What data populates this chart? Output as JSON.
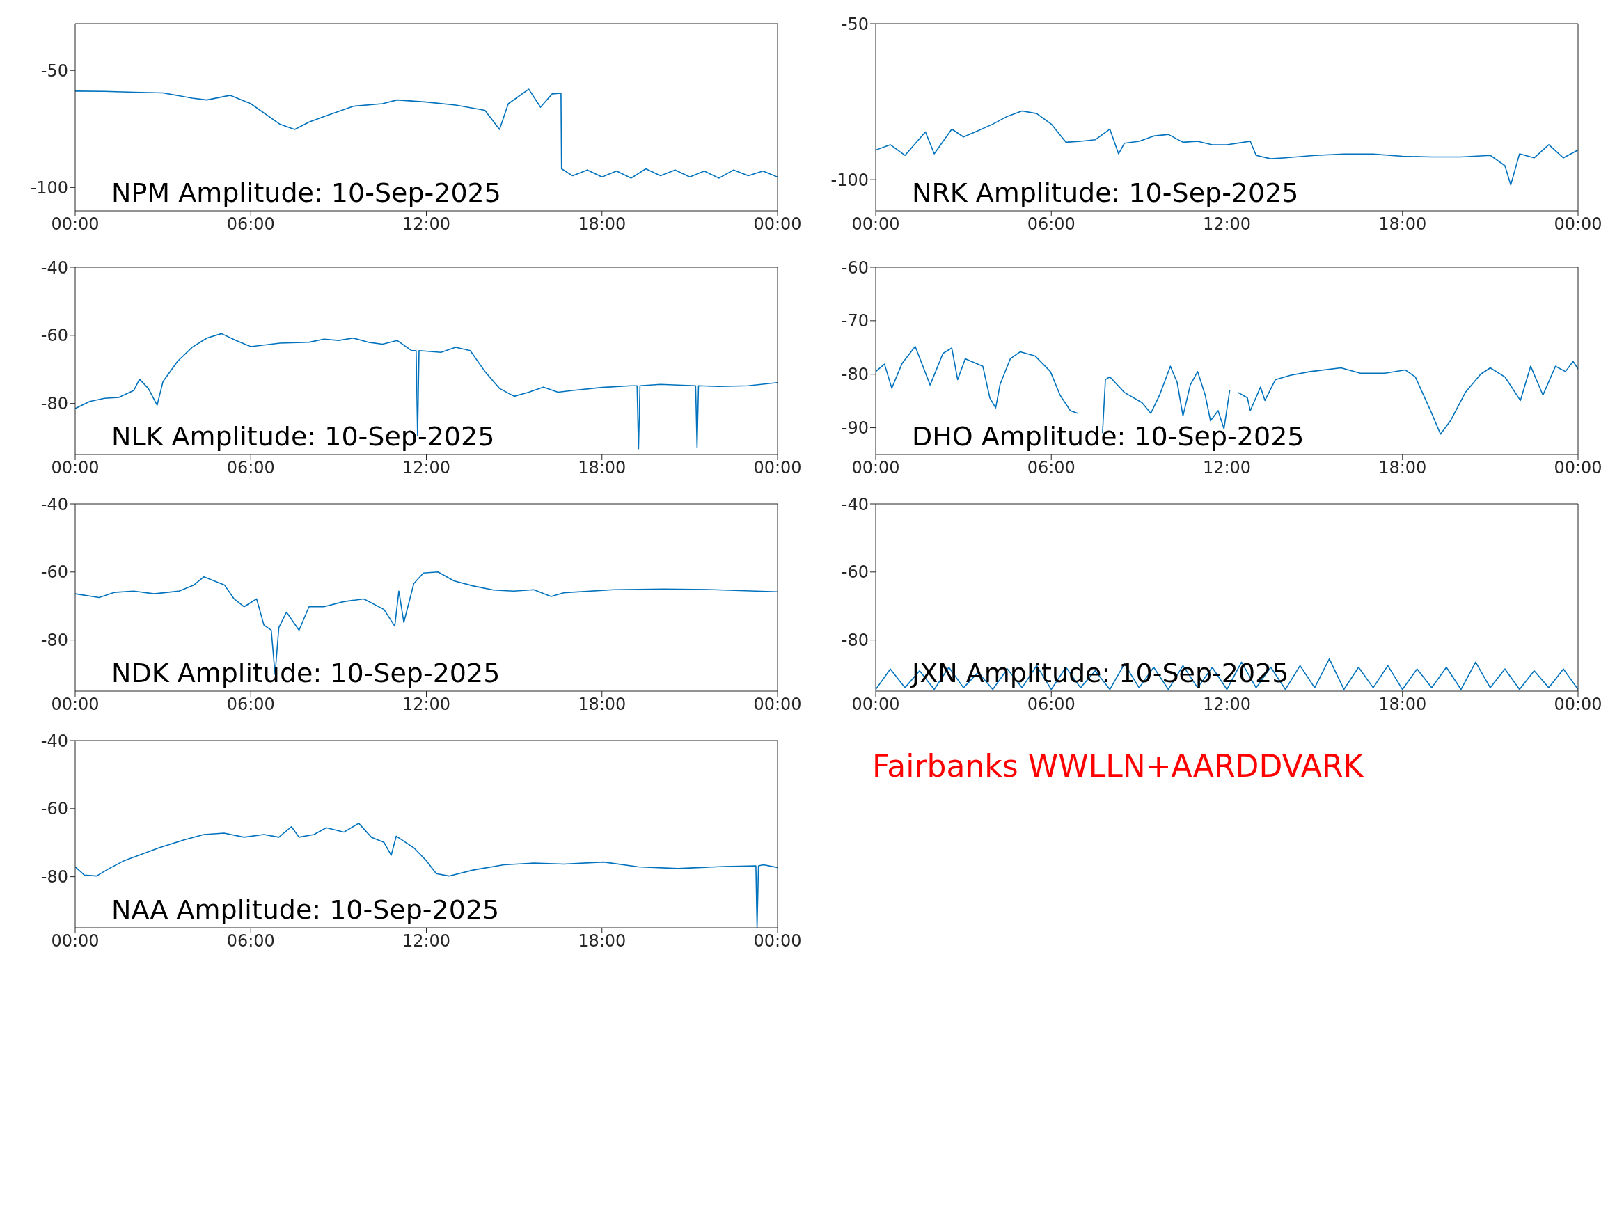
{
  "chart_data": [
    {
      "type": "line",
      "title": "NPM Amplitude: 10-Sep-2025",
      "xlim": [
        0,
        24
      ],
      "xticks": [
        {
          "value": 0,
          "label": "00:00"
        },
        {
          "value": 6,
          "label": "06:00"
        },
        {
          "value": 12,
          "label": "12:00"
        },
        {
          "value": 18,
          "label": "18:00"
        },
        {
          "value": 24,
          "label": "00:00"
        }
      ],
      "ylim": [
        -110,
        -30
      ],
      "yticks": [
        -100,
        -50
      ],
      "x": [
        0,
        1,
        2,
        3,
        4,
        4.5,
        5.3,
        6,
        7,
        7.5,
        8,
        8.5,
        9.5,
        10.5,
        11,
        12,
        13,
        14,
        14.5,
        14.8,
        15.5,
        15.9,
        16.3,
        16.6,
        16.62,
        17,
        17.5,
        18,
        18.5,
        19,
        19.5,
        20,
        20.5,
        21,
        21.5,
        22,
        22.5,
        23,
        23.5,
        24
      ],
      "series": [
        {
          "color": "#0072bd",
          "values": [
            -58.8,
            -58.9,
            -59.3,
            -59.6,
            -61.8,
            -62.6,
            -60.6,
            -64.2,
            -73,
            -75.2,
            -72,
            -69.7,
            -65.3,
            -64.2,
            -62.6,
            -63.5,
            -64.8,
            -67,
            -75.2,
            -64.2,
            -58,
            -65.7,
            -60,
            -59.7,
            -92,
            -95,
            -92.5,
            -95.5,
            -93,
            -96,
            -92,
            -95,
            -92.5,
            -95.5,
            -93,
            -96,
            -92.5,
            -95,
            -93,
            -95.5
          ]
        }
      ]
    },
    {
      "type": "line",
      "title": "NRK Amplitude: 10-Sep-2025",
      "xlim": [
        0,
        24
      ],
      "xticks": [
        {
          "value": 0,
          "label": "00:00"
        },
        {
          "value": 6,
          "label": "06:00"
        },
        {
          "value": 12,
          "label": "12:00"
        },
        {
          "value": 18,
          "label": "18:00"
        },
        {
          "value": 24,
          "label": "00:00"
        }
      ],
      "ylim": [
        -110,
        -50
      ],
      "yticks": [
        -100,
        -50
      ],
      "x": [
        0,
        0.5,
        1,
        1.7,
        2,
        2.6,
        3,
        3.5,
        4,
        4.5,
        5,
        5.5,
        6,
        6.5,
        7,
        7.5,
        8,
        8.3,
        8.5,
        9,
        9.5,
        10,
        10.5,
        11,
        11.5,
        12,
        12.8,
        13,
        13.5,
        14,
        15,
        16,
        17,
        18,
        19,
        20,
        21,
        21.5,
        21.7,
        22,
        22.5,
        23,
        23.5,
        24
      ],
      "series": [
        {
          "color": "#0072bd",
          "values": [
            -90.5,
            -88.8,
            -92.2,
            -84.7,
            -91.7,
            -83.8,
            -86.3,
            -84.3,
            -82.2,
            -79.7,
            -78,
            -78.8,
            -82.2,
            -88,
            -87.7,
            -87.2,
            -83.8,
            -91.7,
            -88.3,
            -87.7,
            -86,
            -85.5,
            -88,
            -87.7,
            -88.8,
            -88.8,
            -87.7,
            -92.2,
            -93.3,
            -93,
            -92.2,
            -91.8,
            -91.8,
            -92.5,
            -92.7,
            -92.7,
            -92.2,
            -95.5,
            -101.7,
            -91.7,
            -93,
            -88.8,
            -93,
            -90.5
          ]
        }
      ]
    },
    {
      "type": "line",
      "title": "NLK Amplitude: 10-Sep-2025",
      "xlim": [
        0,
        24
      ],
      "xticks": [
        {
          "value": 0,
          "label": "00:00"
        },
        {
          "value": 6,
          "label": "06:00"
        },
        {
          "value": 12,
          "label": "12:00"
        },
        {
          "value": 18,
          "label": "18:00"
        },
        {
          "value": 24,
          "label": "00:00"
        }
      ],
      "ylim": [
        -95,
        -40
      ],
      "yticks": [
        -80,
        -60,
        -40
      ],
      "x": [
        0,
        0.5,
        1,
        1.5,
        2,
        2.2,
        2.5,
        2.8,
        3,
        3.5,
        4,
        4.5,
        5,
        5.5,
        6,
        7,
        8,
        8.5,
        9,
        9.5,
        10,
        10.5,
        11,
        11.5,
        11.65,
        11.7,
        11.75,
        12.5,
        13,
        13.5,
        14,
        14.5,
        15,
        15.5,
        16,
        16.5,
        17,
        18,
        19,
        19.2,
        19.25,
        19.3,
        20,
        21.2,
        21.25,
        21.3,
        22,
        23,
        24
      ],
      "series": [
        {
          "color": "#0072bd",
          "values": [
            -81.5,
            -79.4,
            -78.5,
            -78.2,
            -76.2,
            -72.9,
            -75.6,
            -80.5,
            -73.6,
            -67.6,
            -63.5,
            -60.8,
            -59.5,
            -61.5,
            -63.3,
            -62.3,
            -62,
            -61.1,
            -61.5,
            -60.8,
            -62,
            -62.6,
            -61.5,
            -64.5,
            -64.5,
            -89.5,
            -64.5,
            -65,
            -63.5,
            -64.5,
            -70.6,
            -75.6,
            -77.9,
            -76.7,
            -75.2,
            -76.7,
            -76.2,
            -75.3,
            -74.8,
            -74.8,
            -93.3,
            -74.8,
            -74.4,
            -74.8,
            -93,
            -74.8,
            -75,
            -74.8,
            -73.9
          ]
        }
      ]
    },
    {
      "type": "line",
      "title": "DHO Amplitude: 10-Sep-2025",
      "xlim": [
        0,
        24
      ],
      "xticks": [
        {
          "value": 0,
          "label": "00:00"
        },
        {
          "value": 6,
          "label": "06:00"
        },
        {
          "value": 12,
          "label": "12:00"
        },
        {
          "value": 18,
          "label": "18:00"
        },
        {
          "value": 24,
          "label": "00:00"
        }
      ],
      "ylim": [
        -95,
        -60
      ],
      "yticks": [
        -90,
        -80,
        -70,
        -60
      ],
      "x": [
        0,
        0.3,
        0.55,
        0.9,
        1.35,
        1.86,
        2.3,
        2.6,
        2.8,
        3.06,
        3.66,
        3.9,
        4.1,
        4.25,
        4.6,
        4.94,
        5.45,
        5.97,
        6.3,
        6.65,
        6.9,
        7.0,
        7.3,
        7.6,
        7.75,
        7.85,
        8.0,
        8.5,
        9.1,
        9.4,
        9.7,
        10.07,
        10.3,
        10.5,
        10.75,
        11.0,
        11.26,
        11.44,
        11.7,
        11.9,
        12.1,
        12.2,
        12.38,
        12.7,
        12.8,
        13.15,
        13.3,
        13.66,
        14.17,
        14.85,
        15.9,
        16.56,
        17.4,
        18.1,
        18.44,
        18.96,
        19.3,
        19.64,
        20.15,
        20.67,
        21.0,
        21.5,
        22.03,
        22.38,
        22.8,
        23.23,
        23.57,
        23.83,
        24
      ],
      "series": [
        {
          "color": "#0072bd",
          "values": [
            -79.5,
            -78.1,
            -82.6,
            -78,
            -74.8,
            -82,
            -76.1,
            -75.1,
            -81,
            -77.1,
            -78.5,
            -84.4,
            -86.3,
            -81.9,
            -77.1,
            -75.8,
            -76.6,
            -79.5,
            -83.9,
            -86.8,
            -87.3,
            null,
            null,
            null,
            -91,
            -81,
            -80.5,
            -83.4,
            -85.3,
            -87.3,
            -83.9,
            -78.5,
            -81.5,
            -87.8,
            -82,
            -79.5,
            -83.9,
            -88.7,
            -86.8,
            -90.2,
            -82.9,
            null,
            -83.4,
            -84.4,
            -86.8,
            -82.4,
            -84.9,
            -81,
            -80.2,
            -79.5,
            -78.8,
            -79.8,
            -79.8,
            -79.2,
            -80.5,
            -86.8,
            -91.2,
            -88.7,
            -83.4,
            -80,
            -78.8,
            -80.5,
            -84.9,
            -78.5,
            -83.9,
            -78.5,
            -79.5,
            -77.6,
            -79
          ]
        }
      ]
    },
    {
      "type": "line",
      "title": "NDK Amplitude: 10-Sep-2025",
      "xlim": [
        0,
        24
      ],
      "xticks": [
        {
          "value": 0,
          "label": "00:00"
        },
        {
          "value": 6,
          "label": "06:00"
        },
        {
          "value": 12,
          "label": "12:00"
        },
        {
          "value": 18,
          "label": "18:00"
        },
        {
          "value": 24,
          "label": "00:00"
        }
      ],
      "ylim": [
        -95,
        -40
      ],
      "yticks": [
        -80,
        -60,
        -40
      ],
      "x": [
        0,
        0.82,
        1.33,
        2.0,
        2.7,
        3.55,
        4.06,
        4.4,
        5.1,
        5.43,
        5.77,
        6.2,
        6.45,
        6.7,
        6.83,
        6.96,
        7.22,
        7.65,
        7.99,
        8.5,
        9.18,
        9.86,
        10.55,
        10.92,
        11.06,
        11.23,
        11.57,
        11.9,
        12.4,
        12.94,
        13.6,
        14.3,
        14.98,
        15.67,
        16.26,
        16.69,
        18.4,
        20.1,
        21.8,
        24
      ],
      "series": [
        {
          "color": "#0072bd",
          "values": [
            -66.4,
            -67.5,
            -66,
            -65.6,
            -66.4,
            -65.6,
            -63.8,
            -61.4,
            -63.8,
            -67.9,
            -70.2,
            -67.9,
            -75.6,
            -77.1,
            -90.1,
            -76.3,
            -71.8,
            -77.1,
            -70.2,
            -70.2,
            -68.7,
            -67.9,
            -71,
            -75.9,
            -65.6,
            -74.8,
            -63.4,
            -60.3,
            -60,
            -62.6,
            -64.1,
            -65.3,
            -65.6,
            -65.2,
            -67.2,
            -66.1,
            -65.2,
            -65,
            -65.2,
            -65.8
          ]
        }
      ]
    },
    {
      "type": "line",
      "title": "JXN Amplitude: 10-Sep-2025",
      "xlim": [
        0,
        24
      ],
      "xticks": [
        {
          "value": 0,
          "label": "00:00"
        },
        {
          "value": 6,
          "label": "06:00"
        },
        {
          "value": 12,
          "label": "12:00"
        },
        {
          "value": 18,
          "label": "18:00"
        },
        {
          "value": 24,
          "label": "00:00"
        }
      ],
      "ylim": [
        -95,
        -40
      ],
      "yticks": [
        -80,
        -60,
        -40
      ],
      "x": [
        0,
        0.5,
        1,
        1.5,
        2,
        2.5,
        3,
        3.5,
        4,
        4.5,
        5,
        5.5,
        6,
        6.5,
        7,
        7.5,
        8,
        8.5,
        9,
        9.5,
        10,
        10.5,
        11,
        11.5,
        12,
        12.5,
        13,
        13.5,
        14,
        14.5,
        15,
        15.5,
        16,
        16.5,
        17,
        17.5,
        18,
        18.5,
        19,
        19.5,
        20,
        20.5,
        21,
        21.5,
        22,
        22.5,
        23,
        23.5,
        24
      ],
      "series": [
        {
          "color": "#0072bd",
          "values": [
            -94.5,
            -88.5,
            -94,
            -89,
            -94.5,
            -88,
            -94,
            -89.5,
            -94.5,
            -88.5,
            -94,
            -87.5,
            -94.5,
            -88,
            -94,
            -89,
            -94.5,
            -87,
            -94,
            -88,
            -94.5,
            -87.5,
            -94,
            -88,
            -94.5,
            -86.5,
            -94,
            -88,
            -94.5,
            -87.5,
            -94,
            -85.5,
            -94.5,
            -88,
            -94,
            -87.5,
            -94.5,
            -88.5,
            -94,
            -88,
            -94.5,
            -86.5,
            -94,
            -88.5,
            -94.5,
            -89,
            -94,
            -88.5,
            -94.5
          ]
        }
      ]
    },
    {
      "type": "line",
      "title": "NAA Amplitude: 10-Sep-2025",
      "xlim": [
        0,
        24
      ],
      "xticks": [
        {
          "value": 0,
          "label": "00:00"
        },
        {
          "value": 6,
          "label": "06:00"
        },
        {
          "value": 12,
          "label": "12:00"
        },
        {
          "value": 18,
          "label": "18:00"
        },
        {
          "value": 24,
          "label": "00:00"
        }
      ],
      "ylim": [
        -95,
        -40
      ],
      "yticks": [
        -80,
        -60,
        -40
      ],
      "x": [
        0,
        0.31,
        0.73,
        1.16,
        1.67,
        2.18,
        2.87,
        3.72,
        4.4,
        5.09,
        5.77,
        6.45,
        6.96,
        7.39,
        7.65,
        8.16,
        8.58,
        9.18,
        9.69,
        10.12,
        10.55,
        10.8,
        10.97,
        11.57,
        12.0,
        12.34,
        12.77,
        13.62,
        14.65,
        15.67,
        16.7,
        18.06,
        19.25,
        20.6,
        22.15,
        23.26,
        23.3,
        23.35,
        23.52,
        24
      ],
      "series": [
        {
          "color": "#0072bd",
          "values": [
            -77.1,
            -79.5,
            -79.8,
            -77.6,
            -75.3,
            -73.7,
            -71.5,
            -69.2,
            -67.6,
            -67.2,
            -68.4,
            -67.6,
            -68.4,
            -65.3,
            -68.4,
            -67.6,
            -65.6,
            -66.9,
            -64.3,
            -68.4,
            -69.9,
            -73.7,
            -68.1,
            -71.5,
            -75.3,
            -79.1,
            -79.8,
            -78,
            -76.5,
            -76,
            -76.3,
            -75.7,
            -77.1,
            -77.6,
            -77,
            -76.8,
            -95,
            -76.8,
            -76.5,
            -77.3
          ]
        }
      ]
    },
    {
      "type": "other",
      "color": "#ff0000",
      "annotations": [
        "Fairbanks WWLLN+AARDDVARK"
      ]
    }
  ]
}
